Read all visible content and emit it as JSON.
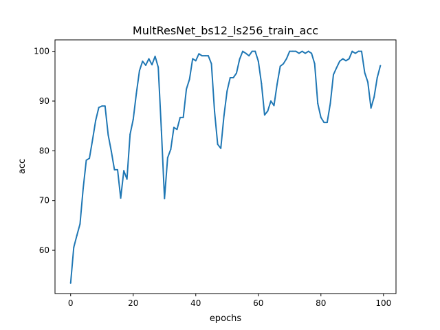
{
  "chart_data": {
    "type": "line",
    "title": "MultResNet_bs12_ls256_train_acc",
    "xlabel": "epochs",
    "ylabel": "acc",
    "xlim": [
      -5,
      104
    ],
    "ylim": [
      51.3,
      102.3
    ],
    "xticks": [
      0,
      20,
      40,
      60,
      80,
      100
    ],
    "yticks": [
      60,
      70,
      80,
      90,
      100
    ],
    "grid": false,
    "color": "#1f77b4",
    "series": [
      {
        "x": [
          0,
          1,
          2,
          3,
          4,
          5,
          6,
          7,
          8,
          9,
          10,
          11,
          12,
          13,
          14,
          15,
          16,
          17,
          18,
          19,
          20,
          21,
          22,
          23,
          24,
          25,
          26,
          27,
          28,
          29,
          30,
          31,
          32,
          33,
          34,
          35,
          36,
          37,
          38,
          39,
          40,
          41,
          42,
          43,
          44,
          45,
          46,
          47,
          48,
          49,
          50,
          51,
          52,
          53,
          54,
          55,
          56,
          57,
          58,
          59,
          60,
          61,
          62,
          63,
          64,
          65,
          66,
          67,
          68,
          69,
          70,
          71,
          72,
          73,
          74,
          75,
          76,
          77,
          78,
          79,
          80,
          81,
          82,
          83,
          84,
          85,
          86,
          87,
          88,
          89,
          90,
          91,
          92,
          93,
          94,
          95,
          96,
          97,
          98,
          99
        ],
        "values": [
          53.4,
          60.6,
          63.0,
          65.3,
          72.4,
          78.1,
          78.5,
          82.2,
          86.1,
          88.7,
          89.0,
          89.0,
          83.2,
          79.9,
          76.2,
          76.2,
          70.5,
          76.0,
          74.3,
          83.3,
          86.3,
          91.5,
          96.1,
          98.0,
          97.2,
          98.5,
          97.3,
          99.0,
          96.8,
          84.2,
          70.4,
          78.6,
          80.3,
          84.7,
          84.3,
          86.7,
          86.7,
          92.4,
          94.4,
          98.5,
          98.1,
          99.5,
          99.1,
          99.1,
          99.1,
          97.5,
          87.9,
          81.3,
          80.5,
          87.0,
          92.0,
          94.7,
          94.7,
          95.6,
          98.4,
          100.0,
          99.6,
          99.1,
          100.0,
          100.0,
          98.0,
          93.5,
          87.2,
          88.0,
          90.0,
          89.1,
          93.4,
          97.0,
          97.5,
          98.5,
          100.0,
          100.0,
          100.0,
          99.6,
          100.0,
          99.6,
          100.0,
          99.6,
          97.5,
          89.5,
          86.7,
          85.7,
          85.7,
          89.5,
          95.3,
          96.7,
          98.0,
          98.5,
          98.1,
          98.5,
          100.0,
          99.6,
          100.0,
          100.0,
          95.7,
          93.8,
          88.6,
          90.8,
          94.7,
          97.1
        ]
      }
    ]
  }
}
